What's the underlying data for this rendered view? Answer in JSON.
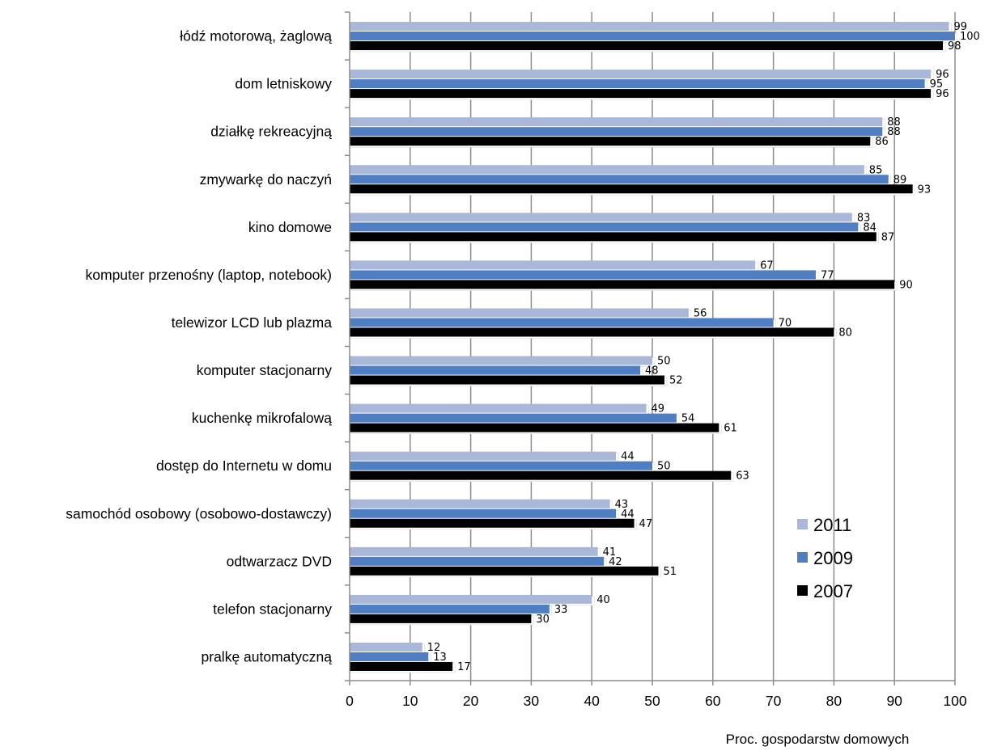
{
  "chart_data": {
    "type": "bar",
    "orientation": "horizontal",
    "categories": [
      "łódź motorową, żaglową",
      "dom letniskowy",
      "działkę rekreacyjną",
      "zmywarkę do naczyń",
      "kino domowe",
      "komputer przenośny (laptop, notebook)",
      "telewizor LCD lub plazma",
      "komputer stacjonarny",
      "kuchenkę mikrofalową",
      "dostęp do Internetu w domu",
      "samochód osobowy (osobowo-dostawczy)",
      "odtwarzacz DVD",
      "telefon stacjonarny",
      "pralkę automatyczną"
    ],
    "series": [
      {
        "name": "2011",
        "color": "#a9b8d9",
        "values": [
          99,
          96,
          88,
          85,
          83,
          67,
          56,
          50,
          49,
          44,
          43,
          41,
          40,
          12
        ]
      },
      {
        "name": "2009",
        "color": "#4f7fc2",
        "values": [
          100,
          95,
          88,
          89,
          84,
          77,
          70,
          48,
          54,
          50,
          44,
          42,
          33,
          13
        ]
      },
      {
        "name": "2007",
        "color": "#000000",
        "values": [
          98,
          96,
          86,
          93,
          87,
          90,
          80,
          52,
          61,
          63,
          47,
          51,
          30,
          17
        ]
      }
    ],
    "xlim": [
      0,
      100
    ],
    "xticks": [
      "0",
      "10",
      "20",
      "30",
      "40",
      "50",
      "60",
      "70",
      "80",
      "90",
      "100"
    ],
    "xlabel": "Proc. gospodarstw domowych",
    "grid": "vertical",
    "legend_position": "bottom-right"
  }
}
